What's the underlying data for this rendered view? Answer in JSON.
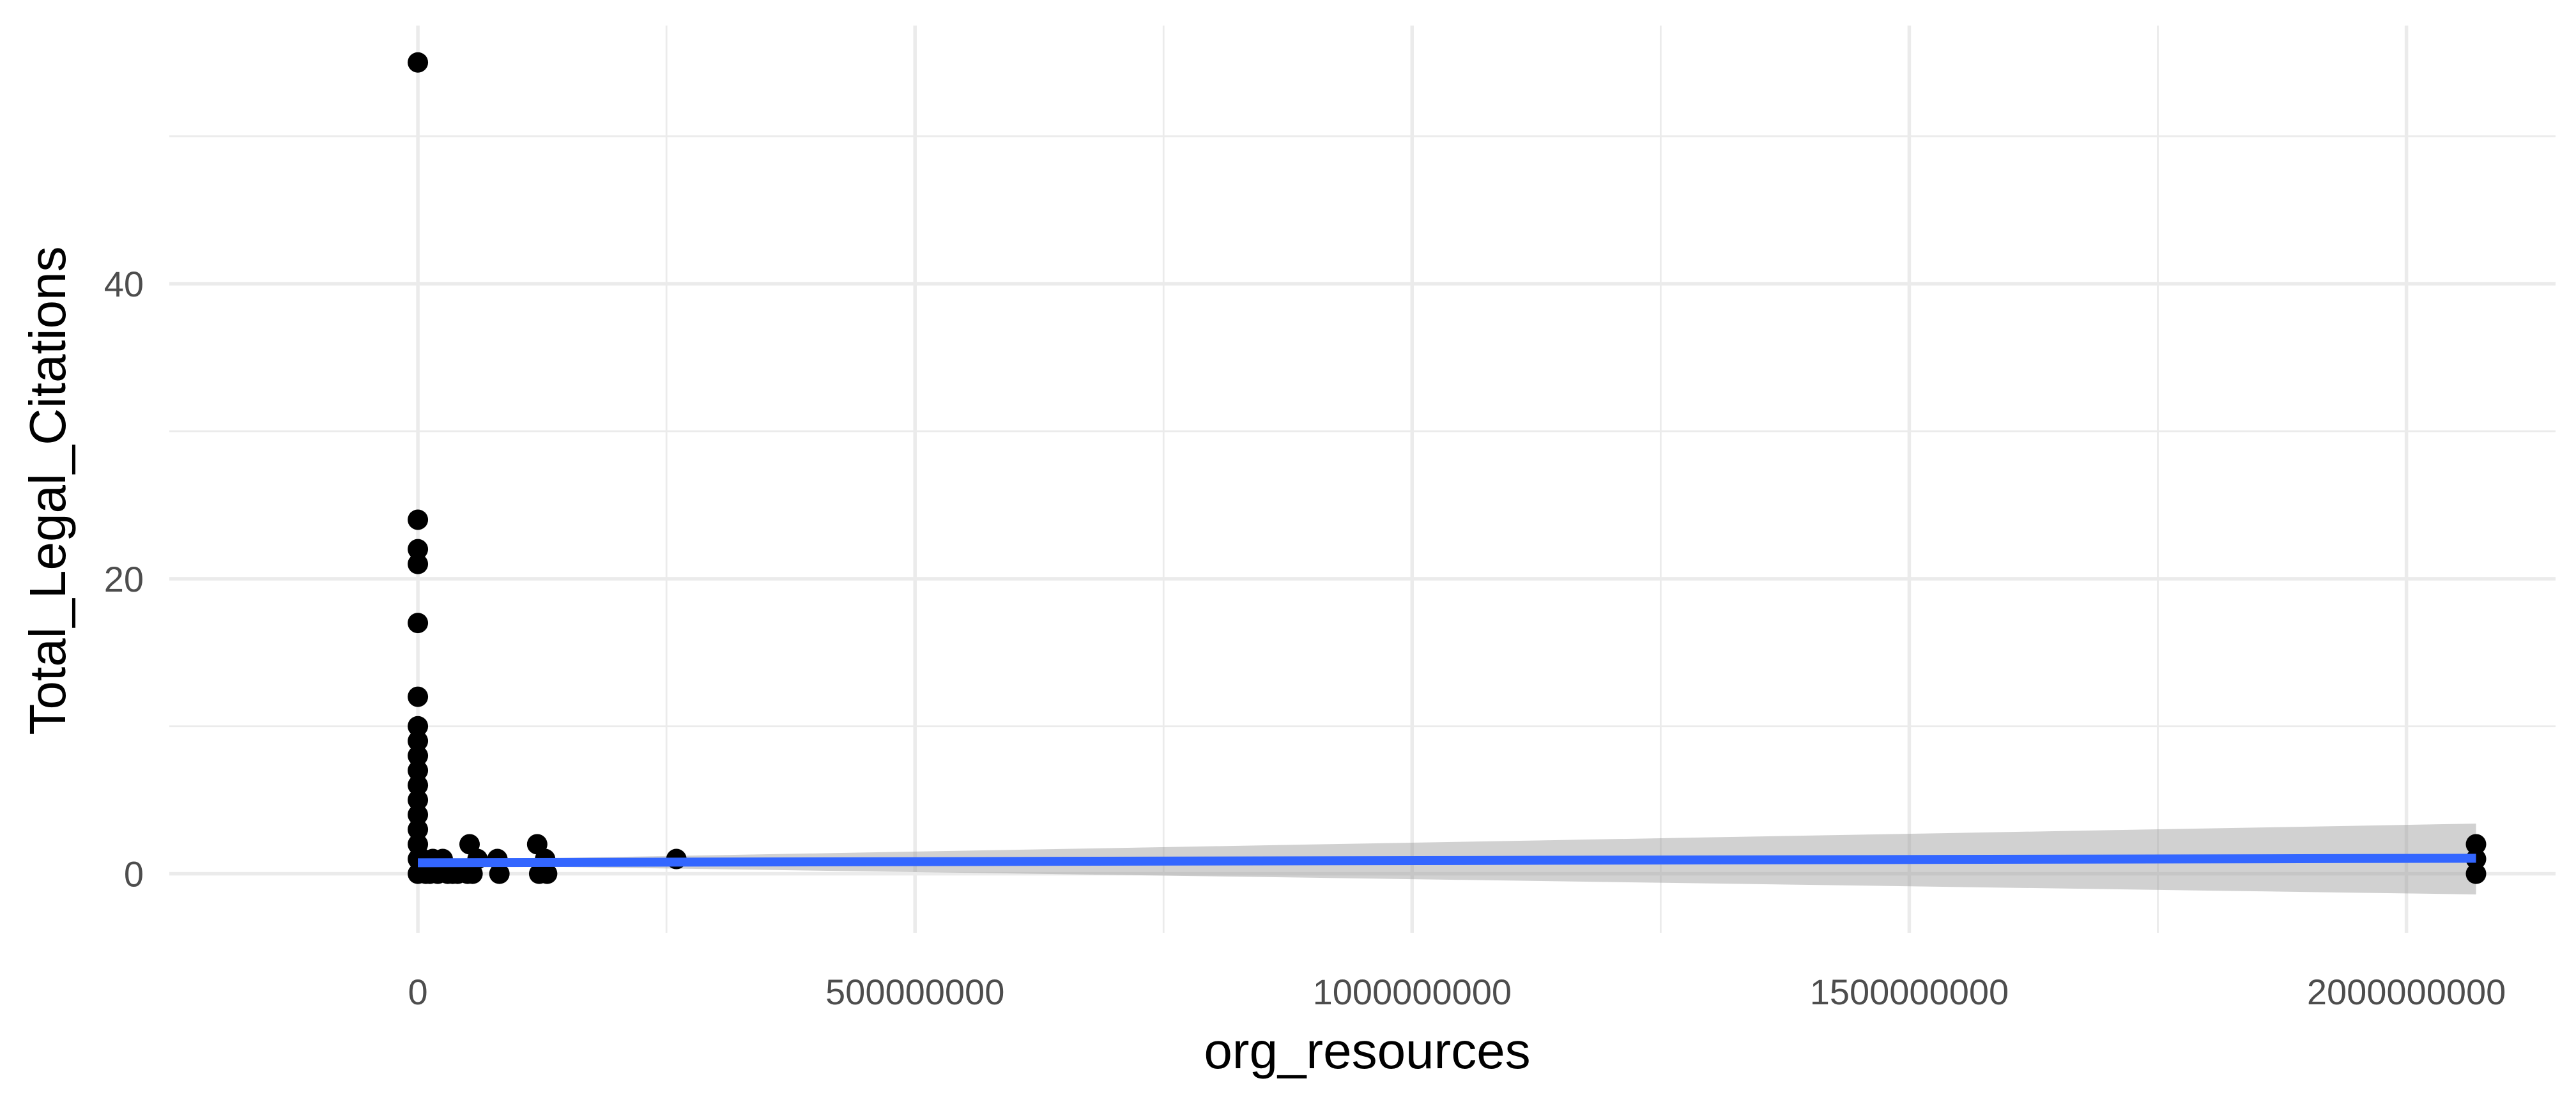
{
  "chart_data": {
    "type": "scatter",
    "xlabel": "org_resources",
    "ylabel": "Total_Legal_Citations",
    "xlim": [
      -250000000,
      2150000000
    ],
    "ylim": [
      -4,
      57.5
    ],
    "x_ticks": [
      0,
      500000000,
      1000000000,
      1500000000,
      2000000000
    ],
    "x_tick_labels": [
      "0",
      "500000000",
      "1000000000",
      "1500000000",
      "2000000000"
    ],
    "x_minor_ticks": [
      250000000,
      750000000,
      1250000000,
      1750000000
    ],
    "y_ticks": [
      0,
      20,
      40
    ],
    "y_tick_labels": [
      "0",
      "20",
      "40"
    ],
    "y_minor_ticks": [
      10,
      30,
      50
    ],
    "grid": true,
    "points": [
      {
        "x": 0,
        "y": 55
      },
      {
        "x": 0,
        "y": 24
      },
      {
        "x": 0,
        "y": 22
      },
      {
        "x": 0,
        "y": 21
      },
      {
        "x": 0,
        "y": 17
      },
      {
        "x": 0,
        "y": 12
      },
      {
        "x": 0,
        "y": 10
      },
      {
        "x": 0,
        "y": 9
      },
      {
        "x": 0,
        "y": 8
      },
      {
        "x": 0,
        "y": 7
      },
      {
        "x": 0,
        "y": 6
      },
      {
        "x": 0,
        "y": 5
      },
      {
        "x": 0,
        "y": 4
      },
      {
        "x": 0,
        "y": 3
      },
      {
        "x": 0,
        "y": 2
      },
      {
        "x": 0,
        "y": 1
      },
      {
        "x": 0,
        "y": 0
      },
      {
        "x": 5000000,
        "y": 1
      },
      {
        "x": 8000000,
        "y": 0
      },
      {
        "x": 12000000,
        "y": 0
      },
      {
        "x": 15000000,
        "y": 1
      },
      {
        "x": 20000000,
        "y": 0
      },
      {
        "x": 25000000,
        "y": 1
      },
      {
        "x": 30000000,
        "y": 0
      },
      {
        "x": 35000000,
        "y": 0
      },
      {
        "x": 40000000,
        "y": 0
      },
      {
        "x": 50000000,
        "y": 0
      },
      {
        "x": 52000000,
        "y": 2
      },
      {
        "x": 55000000,
        "y": 0
      },
      {
        "x": 60000000,
        "y": 1
      },
      {
        "x": 80000000,
        "y": 1
      },
      {
        "x": 82000000,
        "y": 0
      },
      {
        "x": 120000000,
        "y": 2
      },
      {
        "x": 122000000,
        "y": 0
      },
      {
        "x": 128000000,
        "y": 1
      },
      {
        "x": 130000000,
        "y": 0
      },
      {
        "x": 260000000,
        "y": 1
      },
      {
        "x": 2070000000,
        "y": 2
      },
      {
        "x": 2070000000,
        "y": 1
      },
      {
        "x": 2070000000,
        "y": 0
      }
    ],
    "smooth": {
      "method": "linear",
      "color": "#3366ff",
      "x": [
        0,
        2070000000
      ],
      "y": [
        0.75,
        1.05
      ],
      "ci_lower": [
        0.6,
        -1.4
      ],
      "ci_upper": [
        0.9,
        3.4
      ]
    }
  }
}
